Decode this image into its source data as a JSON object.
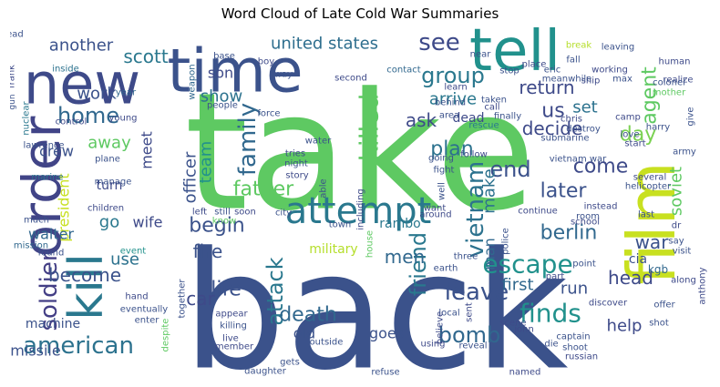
{
  "chart_data": {
    "type": "wordcloud",
    "title": "Word Cloud of Late Cold War Summaries",
    "colormap": "viridis",
    "background": "#ffffff",
    "words": [
      {
        "text": "take",
        "color": "#5ec962"
      },
      {
        "text": "back",
        "color": "#3b528b"
      },
      {
        "text": "time",
        "color": "#3b528b"
      },
      {
        "text": "tell",
        "color": "#21918c"
      },
      {
        "text": "new",
        "color": "#3e4a89"
      },
      {
        "text": "order",
        "color": "#414487"
      },
      {
        "text": "film",
        "color": "#c8e020"
      },
      {
        "text": "kill",
        "color": "#2a788e"
      },
      {
        "text": "attempt",
        "color": "#2a788e"
      },
      {
        "text": "united states",
        "color": "#2e6e8e"
      },
      {
        "text": "killed",
        "color": "#5ec962"
      },
      {
        "text": "vietnam",
        "color": "#2c728e"
      },
      {
        "text": "see",
        "color": "#3e4a89"
      },
      {
        "text": "scott",
        "color": "#2a788e"
      },
      {
        "text": "another",
        "color": "#3b528b"
      },
      {
        "text": "group",
        "color": "#2a788e"
      },
      {
        "text": "return",
        "color": "#3e4a89"
      },
      {
        "text": "agent",
        "color": "#5ec962"
      },
      {
        "text": "home",
        "color": "#31688e"
      },
      {
        "text": "family",
        "color": "#31688e"
      },
      {
        "text": "friend",
        "color": "#2a788e"
      },
      {
        "text": "american",
        "color": "#2c728e"
      },
      {
        "text": "escape",
        "color": "#21918c"
      },
      {
        "text": "finds",
        "color": "#21918c"
      },
      {
        "text": "bomb",
        "color": "#31688e"
      },
      {
        "text": "leave",
        "color": "#3b528b"
      },
      {
        "text": "soldier",
        "color": "#433e85"
      },
      {
        "text": "president",
        "color": "#c8e020"
      },
      {
        "text": "attack",
        "color": "#2a788e"
      },
      {
        "text": "begin",
        "color": "#3b528b"
      },
      {
        "text": "end",
        "color": "#3b528b"
      },
      {
        "text": "plan",
        "color": "#2c728e"
      },
      {
        "text": "day",
        "color": "#7ad151"
      },
      {
        "text": "war",
        "color": "#3b528b"
      },
      {
        "text": "father",
        "color": "#5ec962"
      },
      {
        "text": "death",
        "color": "#31688e"
      },
      {
        "text": "life",
        "color": "#3b528b"
      },
      {
        "text": "men",
        "color": "#31688e"
      },
      {
        "text": "berlin",
        "color": "#31688e"
      },
      {
        "text": "us",
        "color": "#3e4a89"
      },
      {
        "text": "soviet",
        "color": "#5ec962"
      },
      {
        "text": "later",
        "color": "#3b528b"
      },
      {
        "text": "come",
        "color": "#3e4a89"
      },
      {
        "text": "decide",
        "color": "#3e4a89"
      },
      {
        "text": "set",
        "color": "#2c728e"
      },
      {
        "text": "arrive",
        "color": "#2a788e"
      },
      {
        "text": "ask",
        "color": "#3e4a89"
      },
      {
        "text": "make",
        "color": "#2c728e"
      },
      {
        "text": "first",
        "color": "#31688e"
      },
      {
        "text": "run",
        "color": "#3b528b"
      },
      {
        "text": "help",
        "color": "#3e4a89"
      },
      {
        "text": "head",
        "color": "#3e4a89"
      },
      {
        "text": "team",
        "color": "#21918c"
      },
      {
        "text": "meet",
        "color": "#3e4a89"
      },
      {
        "text": "officer",
        "color": "#3b528b"
      },
      {
        "text": "away",
        "color": "#5ec962"
      },
      {
        "text": "work",
        "color": "#3b528b"
      },
      {
        "text": "show",
        "color": "#2c728e"
      },
      {
        "text": "son",
        "color": "#3e4a89"
      },
      {
        "text": "go",
        "color": "#2a788e"
      },
      {
        "text": "become",
        "color": "#3b528b"
      },
      {
        "text": "use",
        "color": "#2c728e"
      },
      {
        "text": "fire",
        "color": "#3b528b"
      },
      {
        "text": "car",
        "color": "#3e4a89"
      },
      {
        "text": "old",
        "color": "#3b528b"
      },
      {
        "text": "goes",
        "color": "#3b528b"
      },
      {
        "text": "man",
        "color": "#31688e"
      },
      {
        "text": "missile",
        "color": "#3b528b"
      },
      {
        "text": "crew",
        "color": "#3b528b"
      },
      {
        "text": "walter",
        "color": "#31688e"
      },
      {
        "text": "turn",
        "color": "#3e4a89"
      },
      {
        "text": "wife",
        "color": "#3e4a89"
      },
      {
        "text": "machine",
        "color": "#3b528b"
      },
      {
        "text": "military",
        "color": "#b5de2b"
      },
      {
        "text": "rambo",
        "color": "#2a788e"
      },
      {
        "text": "cia",
        "color": "#3b528b"
      },
      {
        "text": "kgb",
        "color": "#31688e"
      },
      {
        "text": "dead",
        "color": "#3e4a89"
      },
      {
        "text": "base",
        "color": "#3b528b"
      },
      {
        "text": "boy",
        "color": "#3e4a89"
      },
      {
        "text": "people",
        "color": "#3b528b"
      },
      {
        "text": "force",
        "color": "#3b528b"
      },
      {
        "text": "second",
        "color": "#3e4a89"
      },
      {
        "text": "contact",
        "color": "#31688e"
      },
      {
        "text": "near",
        "color": "#3b528b"
      },
      {
        "text": "lead",
        "color": "#3b528b"
      },
      {
        "text": "frank",
        "color": "#3e4a89"
      },
      {
        "text": "gun",
        "color": "#3b528b"
      },
      {
        "text": "inside",
        "color": "#2c728e"
      },
      {
        "text": "nuclear",
        "color": "#2a788e"
      },
      {
        "text": "lawrence",
        "color": "#3b528b"
      },
      {
        "text": "control",
        "color": "#3e4a89"
      },
      {
        "text": "young",
        "color": "#3e4a89"
      },
      {
        "text": "year",
        "color": "#31688e"
      },
      {
        "text": "plane",
        "color": "#3b528b"
      },
      {
        "text": "manage",
        "color": "#3b528b"
      },
      {
        "text": "marine",
        "color": "#2c728e"
      },
      {
        "text": "children",
        "color": "#3e4a89"
      },
      {
        "text": "much",
        "color": "#3b528b"
      },
      {
        "text": "mission",
        "color": "#31688e"
      },
      {
        "text": "found",
        "color": "#3b528b"
      },
      {
        "text": "event",
        "color": "#21918c"
      },
      {
        "text": "hand",
        "color": "#3e4a89"
      },
      {
        "text": "eventually",
        "color": "#3b528b"
      },
      {
        "text": "enter",
        "color": "#3b528b"
      },
      {
        "text": "despite",
        "color": "#5ec962"
      },
      {
        "text": "together",
        "color": "#3b528b"
      },
      {
        "text": "weapon",
        "color": "#31688e"
      },
      {
        "text": "way",
        "color": "#3b528b"
      },
      {
        "text": "water",
        "color": "#3b528b"
      },
      {
        "text": "tries",
        "color": "#3e4a89"
      },
      {
        "text": "night",
        "color": "#3b528b"
      },
      {
        "text": "story",
        "color": "#3e4a89"
      },
      {
        "text": "left",
        "color": "#3e4a89"
      },
      {
        "text": "still",
        "color": "#3b528b"
      },
      {
        "text": "soon",
        "color": "#3e4a89"
      },
      {
        "text": "city",
        "color": "#3b528b"
      },
      {
        "text": "know",
        "color": "#5ec962"
      },
      {
        "text": "appear",
        "color": "#3e4a89"
      },
      {
        "text": "killing",
        "color": "#3b528b"
      },
      {
        "text": "live",
        "color": "#3e4a89"
      },
      {
        "text": "member",
        "color": "#3e4a89"
      },
      {
        "text": "daughter",
        "color": "#3b528b"
      },
      {
        "text": "gets",
        "color": "#3b528b"
      },
      {
        "text": "outside",
        "color": "#3b528b"
      },
      {
        "text": "around",
        "color": "#3e4a89"
      },
      {
        "text": "local",
        "color": "#3b528b"
      },
      {
        "text": "believe",
        "color": "#3e4a89"
      },
      {
        "text": "refuse",
        "color": "#3b528b"
      },
      {
        "text": "using",
        "color": "#3e4a89"
      },
      {
        "text": "reveal",
        "color": "#3b528b"
      },
      {
        "text": "john",
        "color": "#3e4a89"
      },
      {
        "text": "named",
        "color": "#3e4a89"
      },
      {
        "text": "die",
        "color": "#3b528b"
      },
      {
        "text": "sent",
        "color": "#3e4a89"
      },
      {
        "text": "police",
        "color": "#3b528b"
      },
      {
        "text": "scene",
        "color": "#3e4a89"
      },
      {
        "text": "three",
        "color": "#3b528b"
      },
      {
        "text": "earth",
        "color": "#3b528b"
      },
      {
        "text": "house",
        "color": "#5ec962"
      },
      {
        "text": "town",
        "color": "#3b528b"
      },
      {
        "text": "want",
        "color": "#3e4a89"
      },
      {
        "text": "continue",
        "color": "#3e4a89"
      },
      {
        "text": "well",
        "color": "#3b528b"
      },
      {
        "text": "going",
        "color": "#3b528b"
      },
      {
        "text": "fight",
        "color": "#3b528b"
      },
      {
        "text": "including",
        "color": "#3e4a89"
      },
      {
        "text": "able",
        "color": "#3b528b"
      },
      {
        "text": "follow",
        "color": "#3e4a89"
      },
      {
        "text": "area",
        "color": "#3b528b"
      },
      {
        "text": "rescue",
        "color": "#2a788e"
      },
      {
        "text": "finally",
        "color": "#3b528b"
      },
      {
        "text": "learn",
        "color": "#3e4a89"
      },
      {
        "text": "behind",
        "color": "#3b528b"
      },
      {
        "text": "call",
        "color": "#3e4a89"
      },
      {
        "text": "taken",
        "color": "#3b528b"
      },
      {
        "text": "chris",
        "color": "#3e4a89"
      },
      {
        "text": "destroy",
        "color": "#3b528b"
      },
      {
        "text": "submarine",
        "color": "#3b528b"
      },
      {
        "text": "vietnam war",
        "color": "#3b528b"
      },
      {
        "text": "instead",
        "color": "#3e4a89"
      },
      {
        "text": "room",
        "color": "#3b528b"
      },
      {
        "text": "school",
        "color": "#3e4a89"
      },
      {
        "text": "point",
        "color": "#3b528b"
      },
      {
        "text": "part",
        "color": "#3e4a89"
      },
      {
        "text": "stop",
        "color": "#3b528b"
      },
      {
        "text": "place",
        "color": "#3e4a89"
      },
      {
        "text": "eric",
        "color": "#3b528b"
      },
      {
        "text": "ship",
        "color": "#3e4a89"
      },
      {
        "text": "meanwhile",
        "color": "#3b528b"
      },
      {
        "text": "break",
        "color": "#b5de2b"
      },
      {
        "text": "fall",
        "color": "#3b528b"
      },
      {
        "text": "working",
        "color": "#3e4a89"
      },
      {
        "text": "leaving",
        "color": "#3b528b"
      },
      {
        "text": "human",
        "color": "#3e4a89"
      },
      {
        "text": "max",
        "color": "#3b528b"
      },
      {
        "text": "realize",
        "color": "#3e4a89"
      },
      {
        "text": "colonel",
        "color": "#3b528b"
      },
      {
        "text": "mother",
        "color": "#5ec962"
      },
      {
        "text": "camp",
        "color": "#3e4a89"
      },
      {
        "text": "love",
        "color": "#3b528b"
      },
      {
        "text": "harry",
        "color": "#3b528b"
      },
      {
        "text": "start",
        "color": "#3e4a89"
      },
      {
        "text": "give",
        "color": "#3b528b"
      },
      {
        "text": "army",
        "color": "#3b528b"
      },
      {
        "text": "several",
        "color": "#3e4a89"
      },
      {
        "text": "helicopter",
        "color": "#3b528b"
      },
      {
        "text": "last",
        "color": "#3b528b"
      },
      {
        "text": "dr",
        "color": "#3e4a89"
      },
      {
        "text": "say",
        "color": "#3b528b"
      },
      {
        "text": "visit",
        "color": "#3b528b"
      },
      {
        "text": "along",
        "color": "#3e4a89"
      },
      {
        "text": "anthony",
        "color": "#3e4a89"
      },
      {
        "text": "offer",
        "color": "#3b528b"
      },
      {
        "text": "shot",
        "color": "#3b528b"
      },
      {
        "text": "discover",
        "color": "#3e4a89"
      },
      {
        "text": "captain",
        "color": "#3b528b"
      },
      {
        "text": "shoot",
        "color": "#3b528b"
      },
      {
        "text": "russian",
        "color": "#3e4a89"
      }
    ]
  }
}
